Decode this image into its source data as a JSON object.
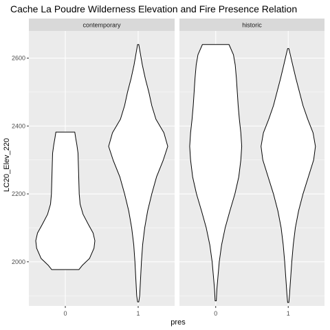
{
  "chart_data": {
    "type": "violin",
    "title": "Cache La Poudre Wilderness Elevation and Fire Presence Relation",
    "xlabel": "pres",
    "ylabel": "LC20_Elev_220",
    "ylim": [
      1870,
      2680
    ],
    "y_ticks": [
      2000,
      2200,
      2400,
      2600
    ],
    "categories": [
      "0",
      "1"
    ],
    "grid": true,
    "colors": {
      "panel_bg": "#ebebeb",
      "grid": "#ffffff",
      "strip_bg": "#d9d9d9",
      "violin_fill": "#ffffff",
      "violin_stroke": "#000000"
    },
    "panels": [
      {
        "label": "contemporary",
        "violins": [
          {
            "category": "0",
            "min": 1977,
            "max": 2382,
            "profile": [
              [
                1977,
                0.46
              ],
              [
                1990,
                0.58
              ],
              [
                2010,
                0.82
              ],
              [
                2040,
                0.97
              ],
              [
                2062,
                1.0
              ],
              [
                2085,
                0.94
              ],
              [
                2110,
                0.78
              ],
              [
                2140,
                0.6
              ],
              [
                2170,
                0.5
              ],
              [
                2200,
                0.47
              ],
              [
                2230,
                0.46
              ],
              [
                2260,
                0.45
              ],
              [
                2290,
                0.44
              ],
              [
                2320,
                0.43
              ],
              [
                2345,
                0.39
              ],
              [
                2365,
                0.35
              ],
              [
                2382,
                0.32
              ]
            ]
          },
          {
            "category": "1",
            "min": 1882,
            "max": 2640,
            "profile": [
              [
                1882,
                0.02
              ],
              [
                1900,
                0.05
              ],
              [
                1950,
                0.08
              ],
              [
                2000,
                0.11
              ],
              [
                2050,
                0.15
              ],
              [
                2100,
                0.22
              ],
              [
                2150,
                0.32
              ],
              [
                2200,
                0.46
              ],
              [
                2250,
                0.62
              ],
              [
                2300,
                0.85
              ],
              [
                2340,
                1.0
              ],
              [
                2380,
                0.87
              ],
              [
                2420,
                0.6
              ],
              [
                2460,
                0.46
              ],
              [
                2500,
                0.36
              ],
              [
                2540,
                0.24
              ],
              [
                2580,
                0.14
              ],
              [
                2610,
                0.08
              ],
              [
                2640,
                0.02
              ]
            ]
          }
        ]
      },
      {
        "label": "historic",
        "violins": [
          {
            "category": "0",
            "min": 1885,
            "max": 2640,
            "profile": [
              [
                1885,
                0.02
              ],
              [
                1920,
                0.04
              ],
              [
                1950,
                0.07
              ],
              [
                2000,
                0.12
              ],
              [
                2050,
                0.2
              ],
              [
                2100,
                0.32
              ],
              [
                2150,
                0.48
              ],
              [
                2200,
                0.65
              ],
              [
                2250,
                0.78
              ],
              [
                2300,
                0.85
              ],
              [
                2340,
                0.88
              ],
              [
                2380,
                0.85
              ],
              [
                2420,
                0.8
              ],
              [
                2460,
                0.76
              ],
              [
                2500,
                0.73
              ],
              [
                2540,
                0.7
              ],
              [
                2580,
                0.66
              ],
              [
                2610,
                0.6
              ],
              [
                2640,
                0.45
              ]
            ]
          },
          {
            "category": "1",
            "min": 1880,
            "max": 2628,
            "profile": [
              [
                1880,
                0.02
              ],
              [
                1900,
                0.04
              ],
              [
                1950,
                0.08
              ],
              [
                2000,
                0.12
              ],
              [
                2050,
                0.17
              ],
              [
                2100,
                0.24
              ],
              [
                2150,
                0.35
              ],
              [
                2200,
                0.5
              ],
              [
                2250,
                0.68
              ],
              [
                2300,
                0.86
              ],
              [
                2340,
                0.92
              ],
              [
                2380,
                0.84
              ],
              [
                2420,
                0.66
              ],
              [
                2460,
                0.5
              ],
              [
                2500,
                0.38
              ],
              [
                2540,
                0.26
              ],
              [
                2580,
                0.15
              ],
              [
                2610,
                0.07
              ],
              [
                2628,
                0.02
              ]
            ]
          }
        ]
      }
    ]
  }
}
